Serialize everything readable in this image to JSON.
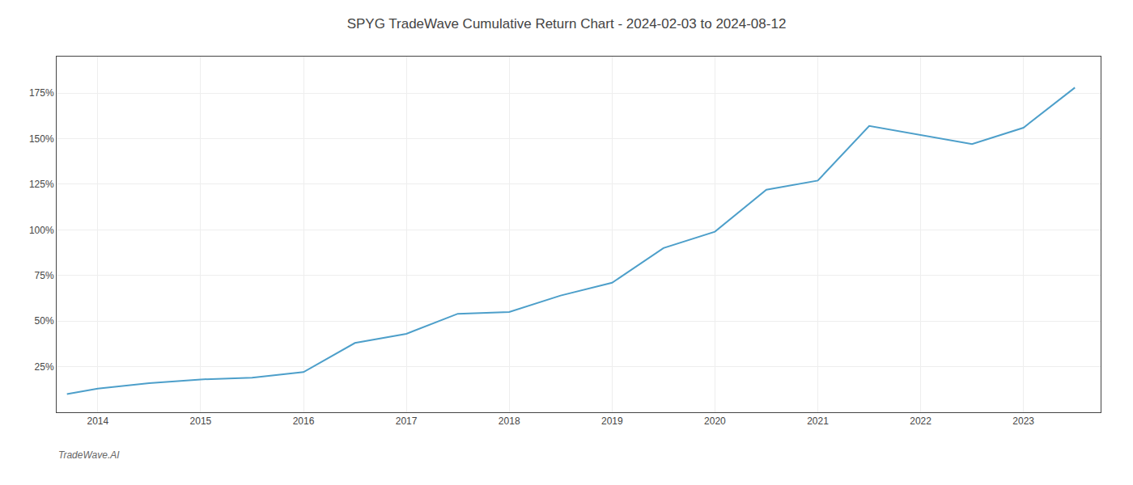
{
  "chart_data": {
    "type": "line",
    "title": "SPYG TradeWave Cumulative Return Chart - 2024-02-03 to 2024-08-12",
    "annotations": [
      "TradeWave.AI"
    ],
    "x": [
      2013.7,
      2014.0,
      2014.5,
      2015.0,
      2015.5,
      2016.0,
      2016.5,
      2017.0,
      2017.5,
      2018.0,
      2018.5,
      2019.0,
      2019.5,
      2020.0,
      2020.5,
      2021.0,
      2021.5,
      2022.0,
      2022.5,
      2023.0,
      2023.5
    ],
    "values": [
      10,
      13,
      16,
      18,
      19,
      22,
      38,
      43,
      54,
      55,
      64,
      71,
      90,
      99,
      122,
      127,
      157,
      152,
      147,
      156,
      178
    ],
    "color": "#4d9fca",
    "xlim": [
      2013.6,
      2023.75
    ],
    "xticks": [
      2014,
      2015,
      2016,
      2017,
      2018,
      2019,
      2020,
      2021,
      2022,
      2023
    ],
    "ylim": [
      0,
      195
    ],
    "yticks": [
      {
        "value": 25,
        "label": "25%"
      },
      {
        "value": 50,
        "label": "50%"
      },
      {
        "value": 75,
        "label": "75%"
      },
      {
        "value": 100,
        "label": "100%"
      },
      {
        "value": 125,
        "label": "125%"
      },
      {
        "value": 150,
        "label": "150%"
      },
      {
        "value": 175,
        "label": "175%"
      }
    ],
    "grid": true
  }
}
